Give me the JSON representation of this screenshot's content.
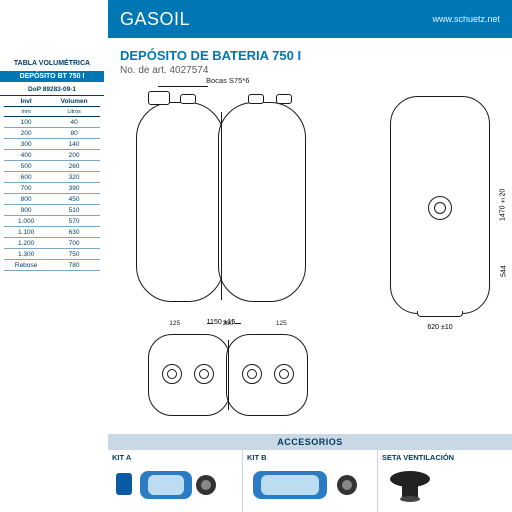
{
  "header": {
    "brand": "GASOIL",
    "url": "www.schuetz.net"
  },
  "product": {
    "title": "DEPÓSITO DE BATERIA 750 I",
    "article_label": "No. de art. 4027574"
  },
  "sidebar": {
    "title": "TABLA VOLUMÉTRICA",
    "blueband": "DEPÓSITO BT 750 I",
    "dop": "DoP 89283-09-1",
    "col_level": "Invl",
    "col_vol": "Volumen",
    "col_level_unit": "mm",
    "col_vol_unit": "Litros",
    "rows": [
      {
        "mm": "100",
        "l": "40"
      },
      {
        "mm": "200",
        "l": "80"
      },
      {
        "mm": "300",
        "l": "140"
      },
      {
        "mm": "400",
        "l": "200"
      },
      {
        "mm": "500",
        "l": "260"
      },
      {
        "mm": "600",
        "l": "320"
      },
      {
        "mm": "700",
        "l": "390"
      },
      {
        "mm": "800",
        "l": "450"
      },
      {
        "mm": "900",
        "l": "510"
      },
      {
        "mm": "1.000",
        "l": "570"
      },
      {
        "mm": "1.100",
        "l": "630"
      },
      {
        "mm": "1.200",
        "l": "700"
      },
      {
        "mm": "1.300",
        "l": "750"
      },
      {
        "mm": "Rebose",
        "l": "780"
      }
    ]
  },
  "drawings": {
    "boca_label": "Bocas S75*6",
    "front_width": "1150 ±15",
    "side_height": "1470 ±20",
    "side_port_height": "544",
    "side_width": "620 ±10",
    "top_d1": "125",
    "top_d2": "360",
    "top_d3": "125"
  },
  "accesorios": {
    "heading": "ACCESORIOS",
    "kit_a": "KIT A",
    "kit_b": "KIT B",
    "seta": "SETA VENTILACIÓN"
  },
  "colors": {
    "brand_blue": "#0077b5",
    "dark_blue": "#003a5d",
    "band_blue": "#c9d8e4",
    "line": "#1a1a1a"
  }
}
